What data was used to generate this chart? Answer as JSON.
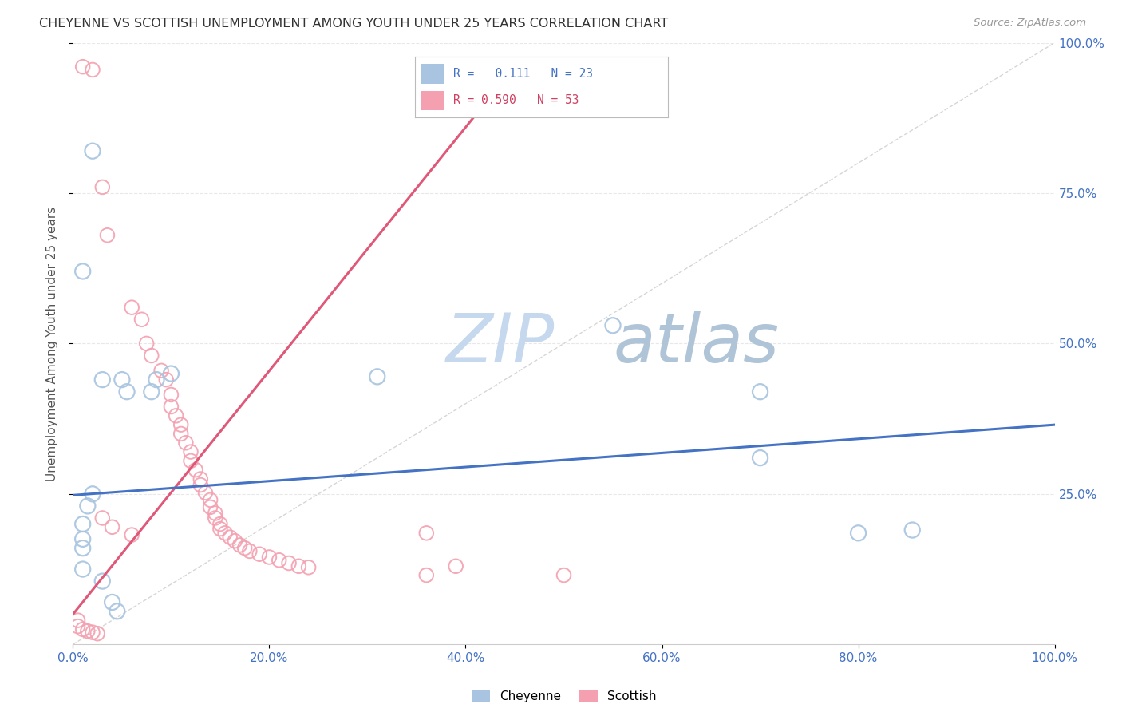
{
  "title": "CHEYENNE VS SCOTTISH UNEMPLOYMENT AMONG YOUTH UNDER 25 YEARS CORRELATION CHART",
  "source": "Source: ZipAtlas.com",
  "ylabel": "Unemployment Among Youth under 25 years",
  "xlim": [
    0,
    1.0
  ],
  "ylim": [
    0,
    1.0
  ],
  "xtick_labels": [
    "0.0%",
    "20.0%",
    "40.0%",
    "60.0%",
    "80.0%",
    "100.0%"
  ],
  "xtick_vals": [
    0.0,
    0.2,
    0.4,
    0.6,
    0.8,
    1.0
  ],
  "ytick_vals": [
    0.25,
    0.5,
    0.75,
    1.0
  ],
  "right_ytick_labels": [
    "100.0%",
    "75.0%",
    "50.0%",
    "25.0%"
  ],
  "right_ytick_vals": [
    1.0,
    0.75,
    0.5,
    0.25
  ],
  "cheyenne_color": "#a8c4e0",
  "scottish_color": "#f4a0b0",
  "cheyenne_line_color": "#4472c4",
  "scottish_line_color": "#e05878",
  "diagonal_color": "#cccccc",
  "watermark_zip": "ZIP",
  "watermark_atlas": "atlas",
  "watermark_color_zip": "#c8d8ee",
  "watermark_color_atlas": "#b8c8dc",
  "cheyenne_points": [
    [
      0.02,
      0.82
    ],
    [
      0.01,
      0.62
    ],
    [
      0.03,
      0.44
    ],
    [
      0.05,
      0.44
    ],
    [
      0.055,
      0.42
    ],
    [
      0.08,
      0.42
    ],
    [
      0.085,
      0.44
    ],
    [
      0.1,
      0.45
    ],
    [
      0.31,
      0.445
    ],
    [
      0.55,
      0.53
    ],
    [
      0.7,
      0.42
    ],
    [
      0.7,
      0.31
    ],
    [
      0.8,
      0.185
    ],
    [
      0.855,
      0.19
    ],
    [
      0.02,
      0.25
    ],
    [
      0.015,
      0.23
    ],
    [
      0.01,
      0.2
    ],
    [
      0.01,
      0.175
    ],
    [
      0.01,
      0.16
    ],
    [
      0.01,
      0.125
    ],
    [
      0.03,
      0.105
    ],
    [
      0.04,
      0.07
    ],
    [
      0.045,
      0.055
    ]
  ],
  "scottish_points": [
    [
      0.01,
      0.96
    ],
    [
      0.02,
      0.955
    ],
    [
      0.03,
      0.76
    ],
    [
      0.035,
      0.68
    ],
    [
      0.06,
      0.56
    ],
    [
      0.07,
      0.54
    ],
    [
      0.075,
      0.5
    ],
    [
      0.08,
      0.48
    ],
    [
      0.09,
      0.455
    ],
    [
      0.095,
      0.44
    ],
    [
      0.1,
      0.415
    ],
    [
      0.1,
      0.395
    ],
    [
      0.105,
      0.38
    ],
    [
      0.11,
      0.365
    ],
    [
      0.11,
      0.35
    ],
    [
      0.115,
      0.335
    ],
    [
      0.12,
      0.32
    ],
    [
      0.12,
      0.305
    ],
    [
      0.125,
      0.29
    ],
    [
      0.13,
      0.275
    ],
    [
      0.13,
      0.265
    ],
    [
      0.135,
      0.252
    ],
    [
      0.14,
      0.24
    ],
    [
      0.14,
      0.228
    ],
    [
      0.145,
      0.218
    ],
    [
      0.145,
      0.21
    ],
    [
      0.15,
      0.2
    ],
    [
      0.15,
      0.192
    ],
    [
      0.155,
      0.185
    ],
    [
      0.16,
      0.178
    ],
    [
      0.165,
      0.172
    ],
    [
      0.17,
      0.165
    ],
    [
      0.175,
      0.16
    ],
    [
      0.18,
      0.155
    ],
    [
      0.19,
      0.15
    ],
    [
      0.2,
      0.145
    ],
    [
      0.21,
      0.14
    ],
    [
      0.22,
      0.135
    ],
    [
      0.23,
      0.13
    ],
    [
      0.24,
      0.128
    ],
    [
      0.03,
      0.21
    ],
    [
      0.04,
      0.195
    ],
    [
      0.06,
      0.182
    ],
    [
      0.36,
      0.115
    ],
    [
      0.36,
      0.185
    ],
    [
      0.39,
      0.13
    ],
    [
      0.5,
      0.115
    ],
    [
      0.005,
      0.04
    ],
    [
      0.005,
      0.03
    ],
    [
      0.01,
      0.025
    ],
    [
      0.015,
      0.022
    ],
    [
      0.02,
      0.02
    ],
    [
      0.025,
      0.018
    ]
  ],
  "cheyenne_line_x": [
    0.0,
    1.0
  ],
  "cheyenne_line_y": [
    0.248,
    0.365
  ],
  "scottish_line_x": [
    0.0,
    0.42
  ],
  "scottish_line_y": [
    0.05,
    0.9
  ],
  "background_color": "#ffffff",
  "grid_color": "#e8e8e8"
}
